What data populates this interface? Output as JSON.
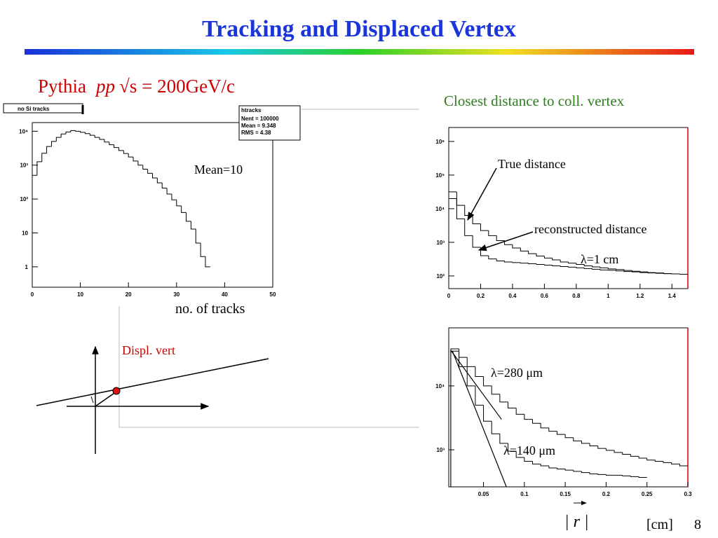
{
  "title": "Tracking and Displaced Vertex",
  "subtitle": {
    "generator": "Pythia",
    "process": "pp",
    "energy": "√s = 200GeV/c"
  },
  "diagram": {
    "label": "Displ. vert"
  },
  "page_number": "8",
  "chart_data": [
    {
      "type": "histogram",
      "title": "no Si tracks",
      "x_label": "no. of tracks",
      "annotation": "Mean=10",
      "stats": {
        "name": "htracks",
        "entries": [
          "Nent = 100000",
          "Mean = 9.348",
          "RMS = 4.38"
        ]
      },
      "log_y": true,
      "xlim": [
        0,
        50
      ],
      "ylim": [
        0.25,
        18000
      ],
      "xticks": [
        0,
        10,
        20,
        30,
        40,
        50
      ],
      "yticks": [
        1,
        10,
        {
          "value": 100,
          "label": "10²"
        },
        {
          "value": 1000,
          "label": "10³"
        },
        {
          "value": 10000,
          "label": "10⁴"
        }
      ],
      "bins": [
        0,
        1,
        2,
        3,
        4,
        5,
        6,
        7,
        8,
        9,
        10,
        11,
        12,
        13,
        14,
        15,
        16,
        17,
        18,
        19,
        20,
        21,
        22,
        23,
        24,
        25,
        26,
        27,
        28,
        29,
        30,
        31,
        32,
        33,
        34,
        35,
        36,
        37
      ],
      "series": [
        {
          "color": "#000000",
          "values": [
            500,
            1260,
            2240,
            3550,
            5000,
            6600,
            8300,
            9500,
            10500,
            10000,
            9300,
            8500,
            7600,
            6600,
            5750,
            4800,
            4000,
            3300,
            2700,
            2200,
            1740,
            1320,
            1000,
            760,
            575,
            420,
            300,
            210,
            140,
            95,
            63,
            40,
            22,
            13,
            5,
            2,
            1
          ]
        }
      ]
    },
    {
      "type": "histogram",
      "title": "Closest distance to coll. vertex",
      "annotations": [
        "True distance",
        "reconstructed distance",
        "λ=1 cm"
      ],
      "log_y": true,
      "xlim": [
        0,
        1.5
      ],
      "ylim": [
        42,
        2600000
      ],
      "xticks": [
        0,
        0.2,
        0.4,
        0.6,
        0.8,
        1,
        1.2,
        1.4
      ],
      "yticks": [
        {
          "value": 100,
          "label": "10²"
        },
        {
          "value": 1000,
          "label": "10³"
        },
        {
          "value": 10000,
          "label": "10⁴"
        },
        {
          "value": 100000,
          "label": "10⁵"
        },
        {
          "value": 1000000,
          "label": "10⁶"
        }
      ],
      "bins": [
        0,
        0.05,
        0.1,
        0.15,
        0.2,
        0.25,
        0.3,
        0.35,
        0.4,
        0.45,
        0.5,
        0.55,
        0.6,
        0.65,
        0.7,
        0.75,
        0.8,
        0.85,
        0.9,
        0.95,
        1,
        1.05,
        1.1,
        1.15,
        1.2,
        1.25,
        1.3,
        1.35,
        1.4,
        1.45,
        1.5
      ],
      "series": [
        {
          "color": "#000000",
          "values": [
            31600,
            12600,
            6300,
            3550,
            2240,
            1580,
            1120,
            850,
            680,
            550,
            460,
            390,
            340,
            300,
            260,
            240,
            220,
            200,
            186,
            174,
            162,
            155,
            145,
            138,
            132,
            126,
            123,
            117,
            115,
            112
          ]
        },
        {
          "color": "#000000",
          "values": [
            20000,
            5000,
            1580,
            710,
            400,
            320,
            280,
            260,
            250,
            240,
            230,
            220,
            210,
            200,
            190,
            182,
            174,
            166,
            158,
            151,
            148,
            141,
            135,
            132,
            126,
            123,
            120,
            117,
            115,
            112
          ]
        }
      ]
    },
    {
      "type": "histogram",
      "x_label": "| r |",
      "x_unit": "[cm]",
      "log_y": true,
      "xlim": [
        0.0075,
        0.3
      ],
      "ylim": [
        263,
        81000
      ],
      "xticks": [
        0.05,
        0.1,
        0.15,
        0.2,
        0.25,
        0.3
      ],
      "yticks": [
        {
          "value": 1000,
          "label": "10³"
        },
        {
          "value": 10000,
          "label": "10⁴"
        }
      ],
      "bins": [
        0.01,
        0.02,
        0.03,
        0.04,
        0.05,
        0.06,
        0.07,
        0.08,
        0.09,
        0.1,
        0.11,
        0.12,
        0.13,
        0.14,
        0.15,
        0.16,
        0.17,
        0.18,
        0.19,
        0.2,
        0.21,
        0.22,
        0.23,
        0.24,
        0.25,
        0.26,
        0.27,
        0.28,
        0.29,
        0.3
      ],
      "series": [
        {
          "color": "#000000",
          "values": [
            38000,
            28000,
            20000,
            14000,
            10000,
            7400,
            5600,
            4500,
            3600,
            3000,
            2600,
            2200,
            1950,
            1740,
            1550,
            1380,
            1260,
            1150,
            1050,
            980,
            910,
            850,
            790,
            740,
            690,
            660,
            630,
            600,
            560
          ]
        },
        {
          "color": "#000000",
          "values": [
            35000,
            20000,
            10000,
            5000,
            2800,
            1780,
            1260,
            950,
            760,
            660,
            600,
            560,
            520,
            500,
            480,
            460,
            440,
            420,
            410,
            400,
            400,
            390,
            380,
            370,
            null,
            null,
            null,
            null,
            null
          ]
        }
      ],
      "fits": [
        {
          "label": "λ=280 μm",
          "x": [
            0.01,
            0.072
          ],
          "y": [
            36000,
            3000
          ]
        },
        {
          "label": "λ=140 μm",
          "x": [
            0.012,
            0.078
          ],
          "y": [
            35000,
            263
          ]
        }
      ]
    }
  ]
}
